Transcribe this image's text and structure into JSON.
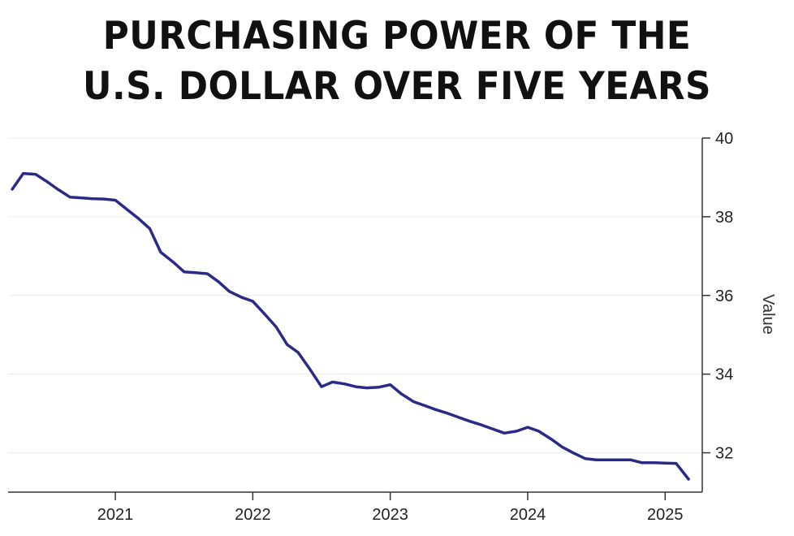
{
  "chart_data": {
    "type": "line",
    "title_lines": [
      "PURCHASING POWER OF THE",
      "U.S. DOLLAR OVER FIVE YEARS"
    ],
    "xlabel": "",
    "ylabel": "Value",
    "ylim": [
      31.0,
      40.0
    ],
    "yticks": [
      32,
      34,
      36,
      38,
      40
    ],
    "xticks": [
      2021,
      2022,
      2023,
      2024,
      2025
    ],
    "xlim": [
      2020.22,
      2025.27
    ],
    "grid": true,
    "y_axis_side": "right",
    "line_color": "#2b2a87",
    "series": [
      {
        "x": [
          2020.25,
          2020.33,
          2020.42,
          2020.5,
          2020.58,
          2020.67,
          2020.75,
          2020.83,
          2020.92,
          2021.0,
          2021.08,
          2021.17,
          2021.25,
          2021.33,
          2021.42,
          2021.5,
          2021.58,
          2021.67,
          2021.75,
          2021.83,
          2021.92,
          2022.0,
          2022.08,
          2022.17,
          2022.25,
          2022.33,
          2022.42,
          2022.5,
          2022.58,
          2022.67,
          2022.75,
          2022.83,
          2022.92,
          2023.0,
          2023.08,
          2023.17,
          2023.25,
          2023.33,
          2023.42,
          2023.5,
          2023.58,
          2023.67,
          2023.75,
          2023.83,
          2023.92,
          2024.0,
          2024.08,
          2024.17,
          2024.25,
          2024.33,
          2024.42,
          2024.5,
          2024.58,
          2024.67,
          2024.75,
          2024.83,
          2024.92,
          2025.0,
          2025.08,
          2025.17
        ],
        "values": [
          38.7,
          39.1,
          39.08,
          38.9,
          38.7,
          38.5,
          38.48,
          38.46,
          38.45,
          38.42,
          38.2,
          37.95,
          37.7,
          37.1,
          36.85,
          36.6,
          36.58,
          36.55,
          36.35,
          36.1,
          35.95,
          35.85,
          35.55,
          35.2,
          34.75,
          34.55,
          34.1,
          33.68,
          33.8,
          33.75,
          33.68,
          33.65,
          33.67,
          33.73,
          33.5,
          33.3,
          33.2,
          33.1,
          33.0,
          32.9,
          32.8,
          32.7,
          32.6,
          32.5,
          32.55,
          32.65,
          32.55,
          32.35,
          32.15,
          32.0,
          31.85,
          31.82,
          31.82,
          31.82,
          31.82,
          31.75,
          31.75,
          31.74,
          31.73,
          31.33
        ]
      }
    ]
  }
}
